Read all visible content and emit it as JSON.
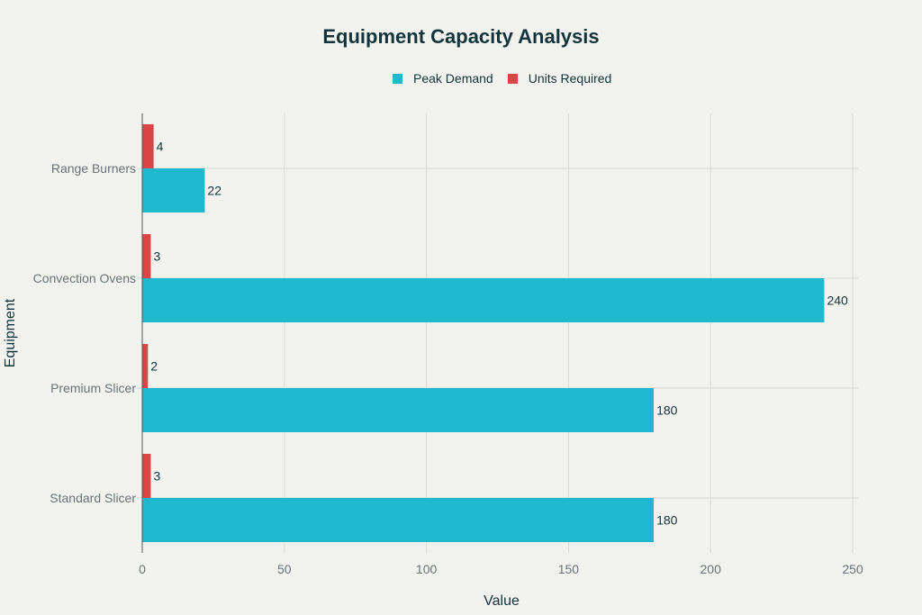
{
  "chart_data": {
    "type": "bar",
    "orientation": "horizontal",
    "title": "Equipment Capacity Analysis",
    "xlabel": "Value",
    "ylabel": "Equipment",
    "xlim": [
      0,
      252
    ],
    "xticks": [
      0,
      50,
      100,
      150,
      200,
      250
    ],
    "grid": true,
    "legend_position": "top-center",
    "categories": [
      "Range Burners",
      "Convection Ovens",
      "Premium Slicer",
      "Standard Slicer"
    ],
    "series": [
      {
        "name": "Peak Demand",
        "color": "#1fb8cd",
        "values": [
          22,
          240,
          180,
          180
        ]
      },
      {
        "name": "Units Required",
        "color": "#db4545",
        "values": [
          4,
          3,
          2,
          3
        ]
      }
    ]
  }
}
